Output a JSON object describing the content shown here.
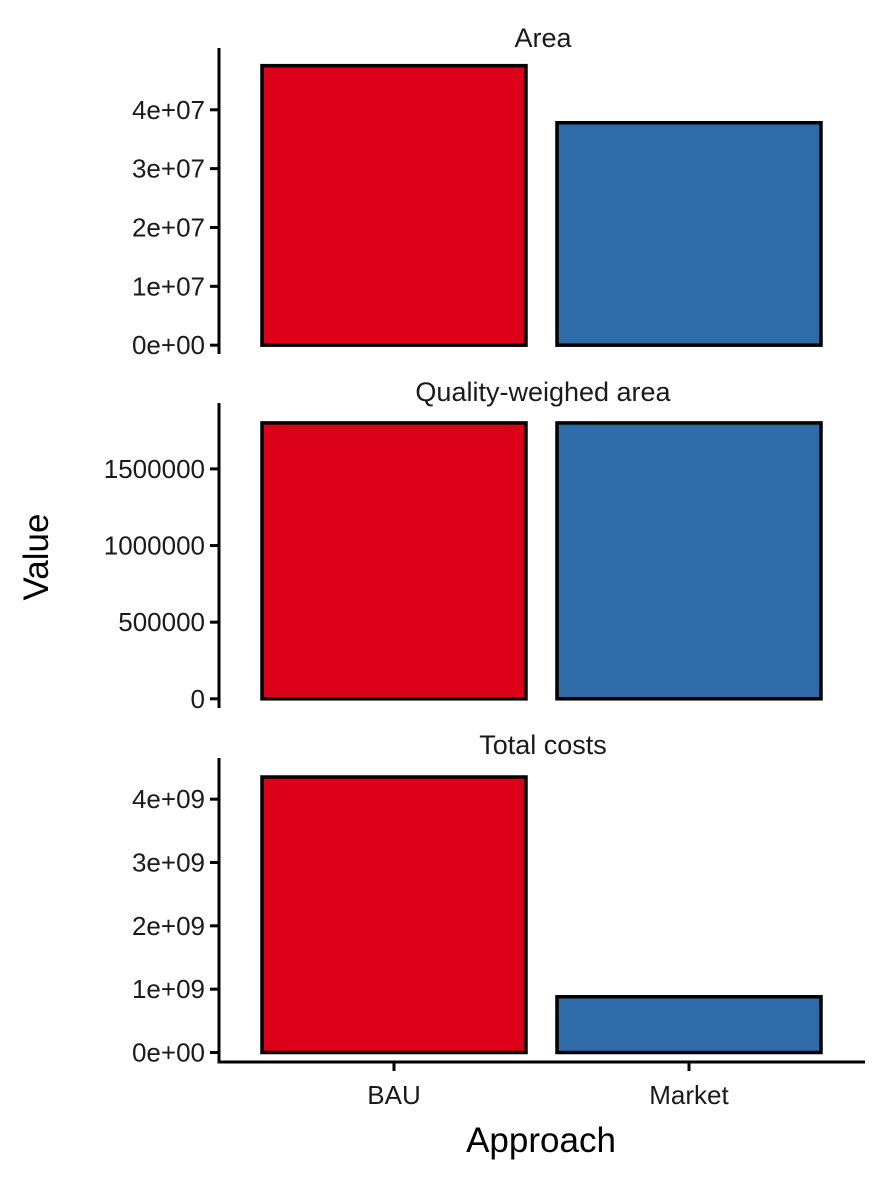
{
  "chart_data": {
    "type": "bar",
    "layout": "vertical-facets",
    "xlabel": "Approach",
    "ylabel": "Value",
    "categories": [
      "BAU",
      "Market"
    ],
    "colors": {
      "BAU": "#dc0018",
      "Market": "#2e6ba8"
    },
    "facets": [
      {
        "title": "Area",
        "ylim": [
          -1500000,
          50500000
        ],
        "ticks": [
          0,
          10000000,
          20000000,
          30000000,
          40000000
        ],
        "tick_labels": [
          "0e+00",
          "1e+07",
          "2e+07",
          "3e+07",
          "4e+07"
        ],
        "values": [
          47500000,
          37800000
        ]
      },
      {
        "title": "Quality-weighed area",
        "ylim": [
          -60000,
          1930000
        ],
        "ticks": [
          0,
          500000,
          1000000,
          1500000
        ],
        "tick_labels": [
          "0",
          "500000",
          "1000000",
          "1500000"
        ],
        "values": [
          1800000,
          1800000
        ]
      },
      {
        "title": "Total costs",
        "ylim": [
          -150000000,
          4650000000
        ],
        "ticks": [
          0,
          1000000000,
          2000000000,
          3000000000,
          4000000000
        ],
        "tick_labels": [
          "0e+00",
          "1e+09",
          "2e+09",
          "3e+09",
          "4e+09"
        ],
        "values": [
          4350000000,
          880000000
        ]
      }
    ]
  }
}
